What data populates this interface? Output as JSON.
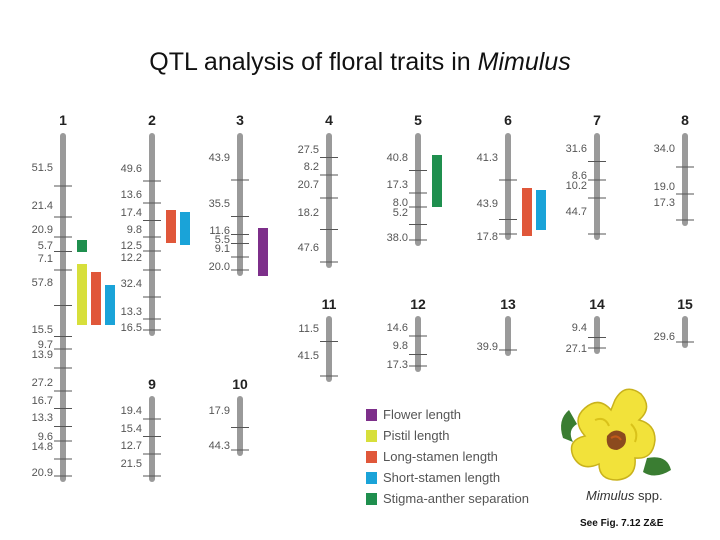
{
  "title": {
    "prefix": "QTL analysis of floral traits in ",
    "genus": "Mimulus"
  },
  "colors": {
    "flower": "#7d2f8a",
    "pistil": "#d7df3b",
    "long": "#e0573a",
    "short": "#1aa3d8",
    "stigma": "#1f8f4e",
    "chromosome": "#9a9a9a"
  },
  "legend": [
    {
      "key": "flower",
      "label": "Flower length"
    },
    {
      "key": "pistil",
      "label": "Pistil length"
    },
    {
      "key": "long",
      "label": "Long-stamen length"
    },
    {
      "key": "short",
      "label": "Short-stamen length"
    },
    {
      "key": "stigma",
      "label": "Stigma-anther separation"
    }
  ],
  "chromosomes": [
    {
      "id": "1",
      "labels": [
        "51.5",
        "21.4",
        "20.9",
        "5.7",
        "7.1",
        "57.8",
        "15.5",
        "9.7",
        "13.9",
        "27.2",
        "16.7",
        "13.3",
        "9.6",
        "14.8",
        "20.9"
      ],
      "qtls": [
        {
          "trait": "stigma"
        },
        {
          "trait": "pistil"
        },
        {
          "trait": "long"
        },
        {
          "trait": "short"
        }
      ]
    },
    {
      "id": "2",
      "labels": [
        "49.6",
        "13.6",
        "17.4",
        "9.8",
        "12.5",
        "12.2",
        "32.4",
        "13.3",
        "16.5"
      ],
      "qtls": [
        {
          "trait": "long"
        },
        {
          "trait": "short"
        }
      ]
    },
    {
      "id": "3",
      "labels": [
        "43.9",
        "35.5",
        "11.6",
        "5.5",
        "9.1",
        "20.0"
      ],
      "qtls": [
        {
          "trait": "flower"
        }
      ]
    },
    {
      "id": "4",
      "labels": [
        "27.5",
        "8.2",
        "20.7",
        "18.2",
        "47.6"
      ],
      "qtls": []
    },
    {
      "id": "5",
      "labels": [
        "40.8",
        "17.3",
        "8.0",
        "5.2",
        "38.0"
      ],
      "qtls": [
        {
          "trait": "stigma"
        }
      ]
    },
    {
      "id": "6",
      "labels": [
        "41.3",
        "43.9",
        "17.8"
      ],
      "qtls": [
        {
          "trait": "long"
        },
        {
          "trait": "short"
        }
      ]
    },
    {
      "id": "7",
      "labels": [
        "31.6",
        "8.6",
        "10.2",
        "44.7"
      ],
      "qtls": []
    },
    {
      "id": "8",
      "labels": [
        "34.0",
        "19.0",
        "17.3"
      ],
      "qtls": []
    },
    {
      "id": "9",
      "labels": [
        "19.4",
        "15.4",
        "12.7",
        "21.5"
      ],
      "qtls": []
    },
    {
      "id": "10",
      "labels": [
        "17.9",
        "44.3"
      ],
      "qtls": []
    },
    {
      "id": "11",
      "labels": [
        "11.5",
        "41.5"
      ],
      "qtls": []
    },
    {
      "id": "12",
      "labels": [
        "14.6",
        "9.8",
        "17.3"
      ],
      "qtls": []
    },
    {
      "id": "13",
      "labels": [
        "39.9"
      ],
      "qtls": []
    },
    {
      "id": "14",
      "labels": [
        "9.4",
        "27.1"
      ],
      "qtls": []
    },
    {
      "id": "15",
      "labels": [
        "29.6"
      ],
      "qtls": []
    }
  ],
  "caption": {
    "genus": "Mimulus",
    "suffix": " spp."
  },
  "reference": "See Fig. 7.12 Z&E"
}
